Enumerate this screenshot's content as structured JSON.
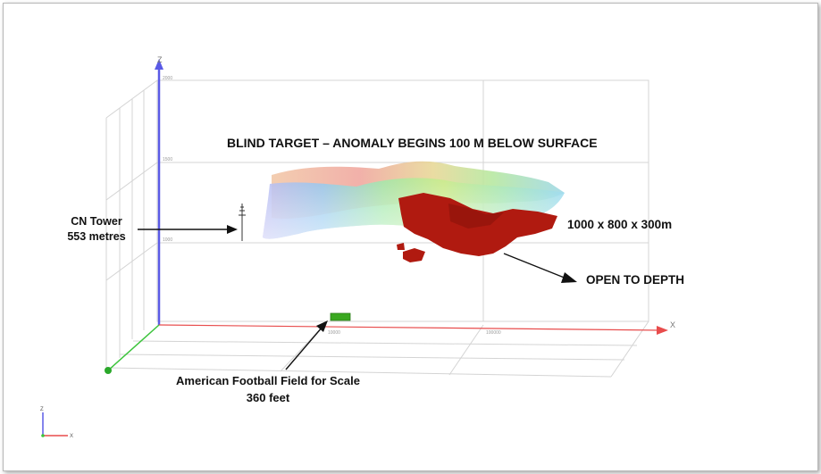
{
  "diagram": {
    "title": "BLIND TARGET – ANOMALY BEGINS 100 M BELOW SURFACE",
    "cn_tower": {
      "line1": "CN Tower",
      "line2": "553 metres"
    },
    "dimensions": "1000 x 800 x 300m",
    "open_to_depth": "OPEN TO DEPTH",
    "football": {
      "line1": "American Football Field for Scale",
      "line2": "360 feet"
    },
    "axes": {
      "z": "Z",
      "x": "X",
      "z_ticks": [
        "2000",
        "1500",
        "1000"
      ],
      "x_ticks": [
        "10000",
        "100000"
      ]
    },
    "colors": {
      "z_axis": "#5a5ae6",
      "x_axis": "#e84c4c",
      "y_axis": "#3cc43c",
      "grid": "#d4d4d4",
      "anomaly": "#b01a10",
      "football_field": "#3aa820"
    }
  }
}
